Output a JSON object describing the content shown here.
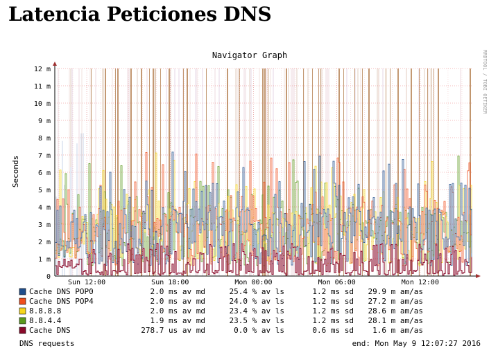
{
  "page": {
    "heading": "Latencia Peticiones DNS"
  },
  "chart_data": {
    "type": "line",
    "title": "Navigator Graph",
    "ylabel": "Seconds",
    "watermark": "RRDTOOL / TOBI OETIKER",
    "ylim": [
      0,
      0.012
    ],
    "yticks": [
      {
        "value": 0,
        "label": "0"
      },
      {
        "value": 0.001,
        "label": "1 m"
      },
      {
        "value": 0.002,
        "label": "2 m"
      },
      {
        "value": 0.003,
        "label": "3 m"
      },
      {
        "value": 0.004,
        "label": "4 m"
      },
      {
        "value": 0.005,
        "label": "5 m"
      },
      {
        "value": 0.006,
        "label": "6 m"
      },
      {
        "value": 0.007,
        "label": "7 m"
      },
      {
        "value": 0.008,
        "label": "8 m"
      },
      {
        "value": 0.009,
        "label": "9 m"
      },
      {
        "value": 0.01,
        "label": "10 m"
      },
      {
        "value": 0.011,
        "label": "11 m"
      },
      {
        "value": 0.012,
        "label": "12 m"
      }
    ],
    "xlim_hours": [
      -2.3,
      27.7
    ],
    "xticks": [
      {
        "hour": 0,
        "label": "Sun 12:00"
      },
      {
        "hour": 6,
        "label": "Sun 18:00"
      },
      {
        "hour": 12,
        "label": "Mon 00:00"
      },
      {
        "hour": 18,
        "label": "Mon 06:00"
      },
      {
        "hour": 24,
        "label": "Mon 12:00"
      }
    ],
    "series": [
      {
        "name": "Cache DNS POP0",
        "color": "#1f4e8c",
        "avg": "2.0 ms av md",
        "loss": "25.4 % av ls",
        "sd": "1.2 ms sd",
        "am": "29.9 m am/as"
      },
      {
        "name": "Cache DNS POP4",
        "color": "#f04e1c",
        "avg": "2.0 ms av md",
        "loss": "24.0 % av ls",
        "sd": "1.2 ms sd",
        "am": "27.2 m am/as"
      },
      {
        "name": "8.8.8.8",
        "color": "#f5d61c",
        "avg": "2.0 ms av md",
        "loss": "23.4 % av ls",
        "sd": "1.2 ms sd",
        "am": "28.6 m am/as"
      },
      {
        "name": "8.8.4.4",
        "color": "#5a9a1c",
        "avg": "1.9 ms av md",
        "loss": "23.5 % av ls",
        "sd": "1.2 ms sd",
        "am": "28.1 m am/as"
      },
      {
        "name": "Cache DNS",
        "color": "#8a0a2a",
        "avg": "278.7 us av md",
        "loss": "0.0 % av ls",
        "sd": "0.6 ms sd",
        "am": "1.6 m am/as"
      }
    ],
    "footer_left": "DNS requests",
    "footer_right": "end: Mon May  9 12:07:27 2016"
  }
}
